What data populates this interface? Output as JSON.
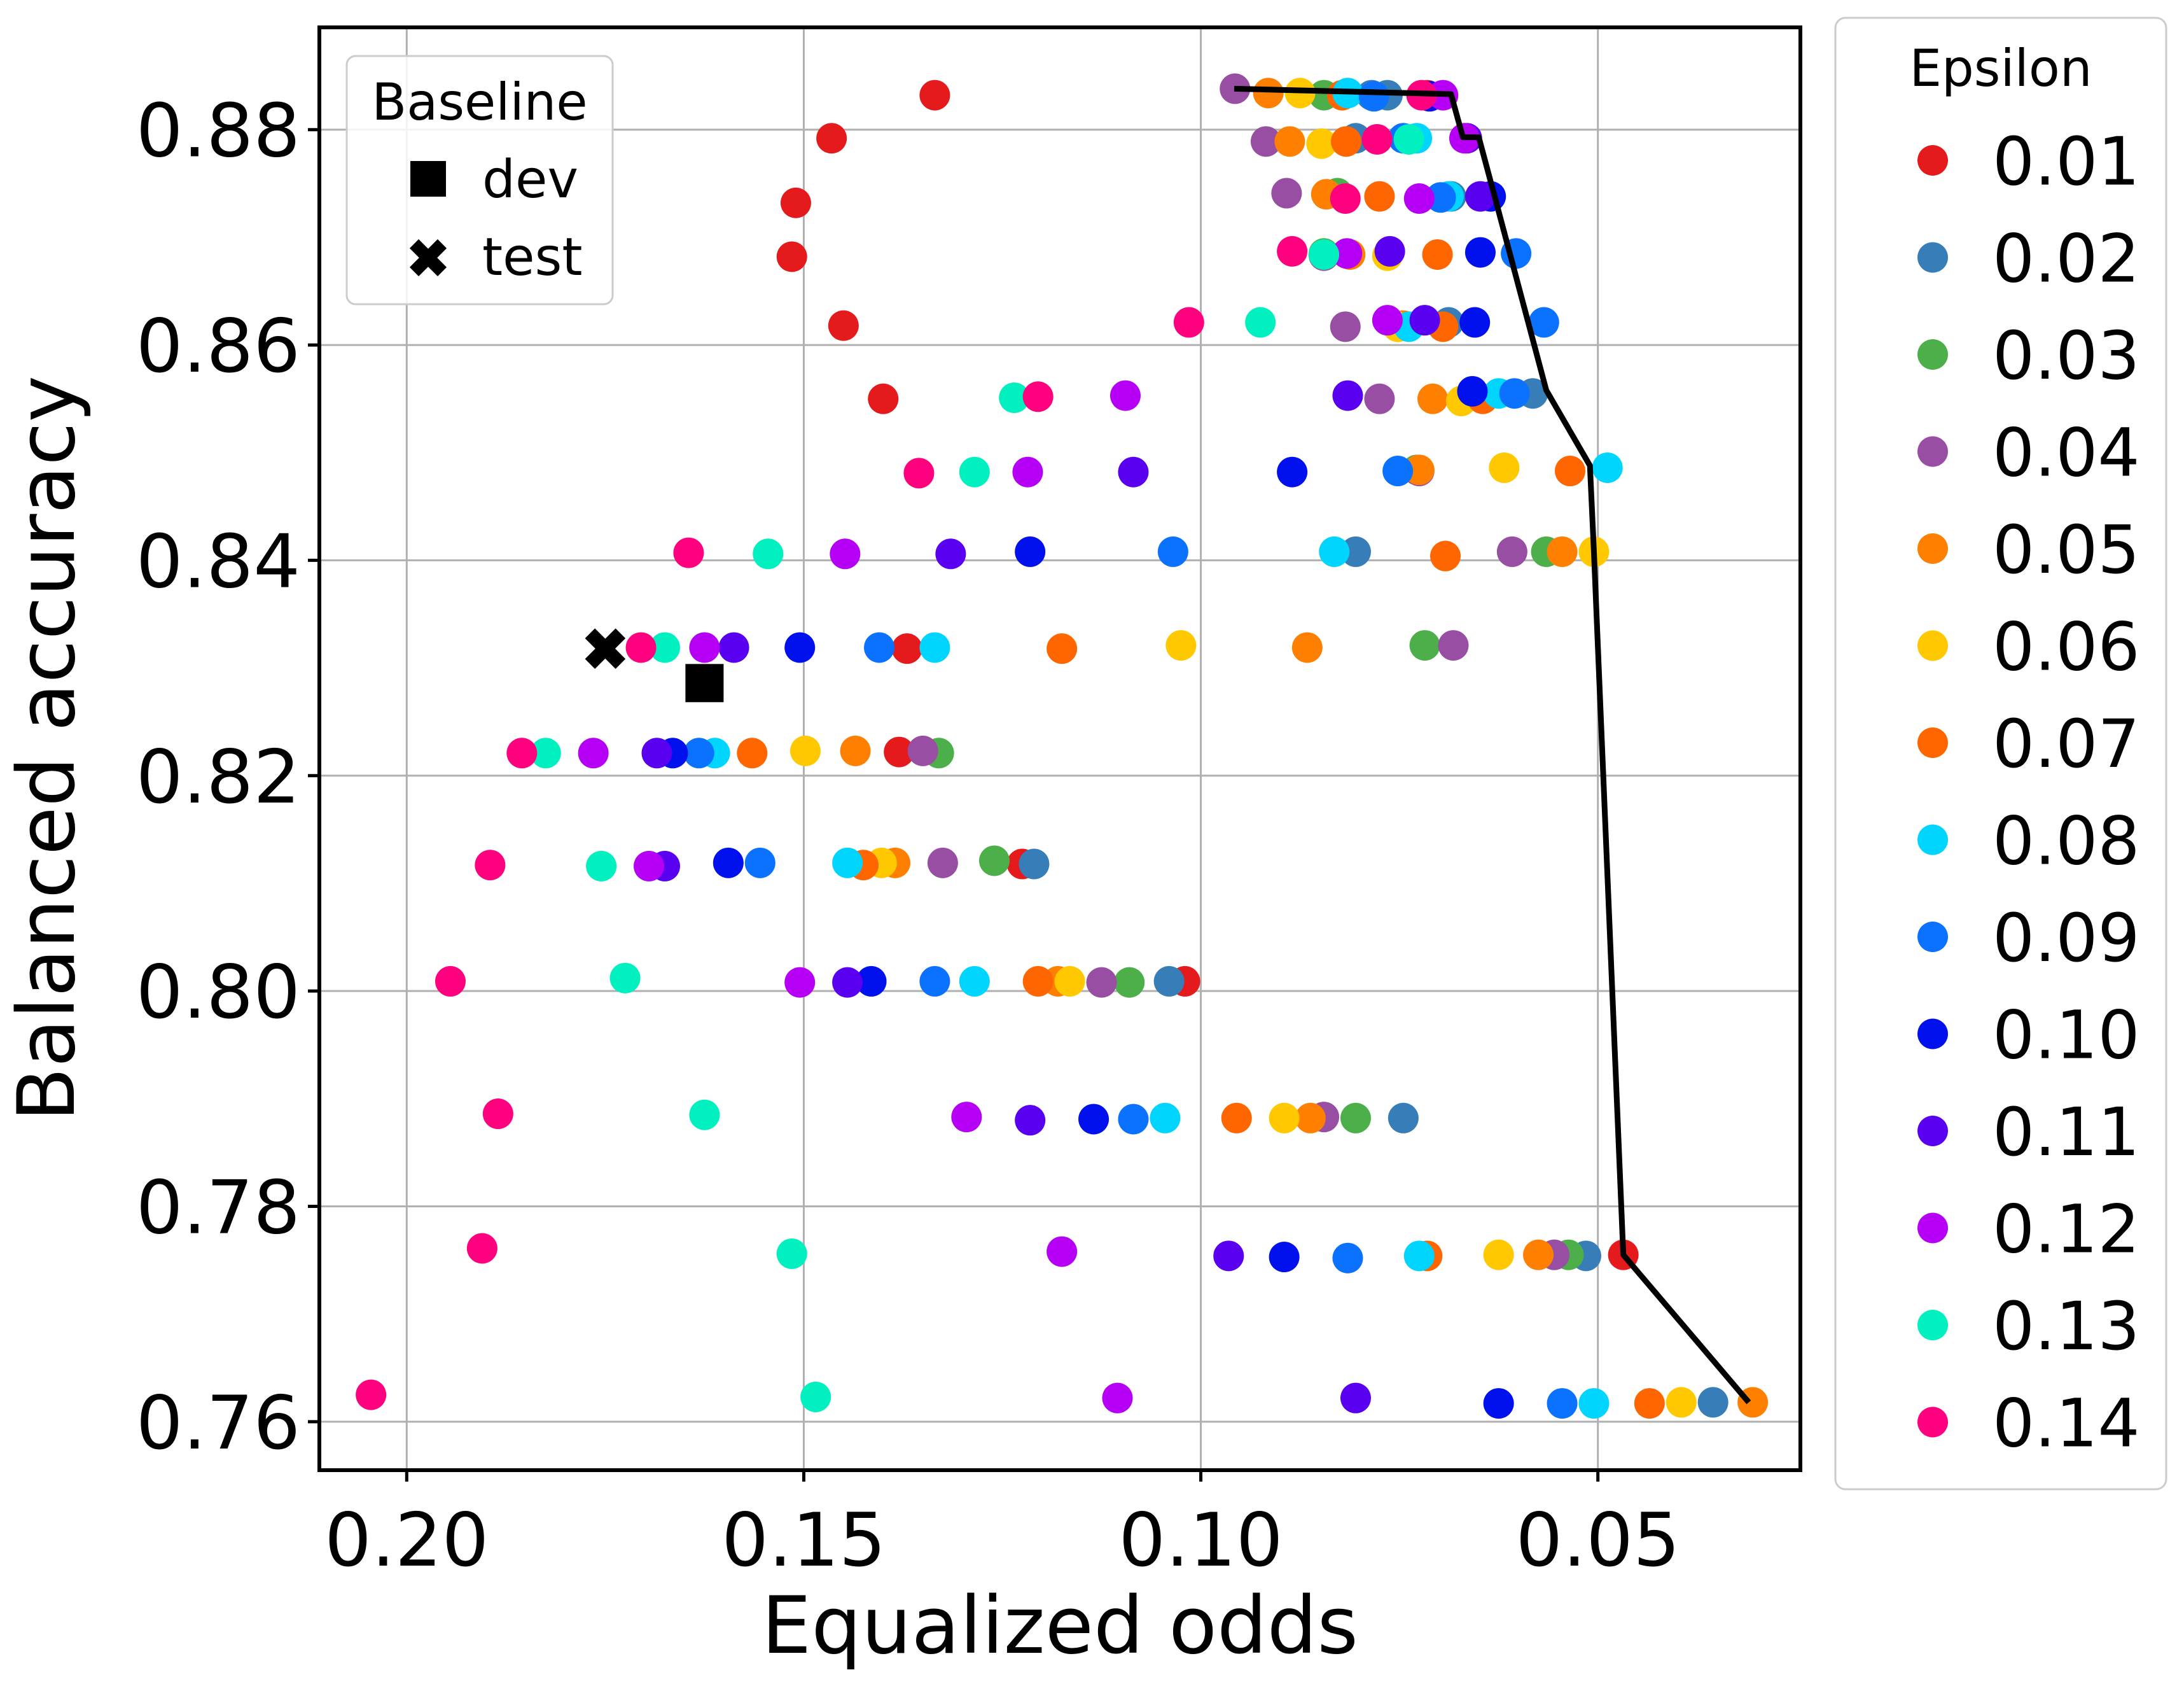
{
  "chart_data": {
    "type": "scatter",
    "xlabel": "Equalized odds",
    "ylabel": "Balanced accuracy",
    "x_axis_inverted": true,
    "xlim": [
      0.211,
      0.0245
    ],
    "ylim": [
      0.7555,
      0.8895
    ],
    "xticks": [
      0.2,
      0.15,
      0.1,
      0.05
    ],
    "xtick_labels": [
      "0.20",
      "0.15",
      "0.10",
      "0.05"
    ],
    "yticks": [
      0.76,
      0.78,
      0.8,
      0.82,
      0.84,
      0.86,
      0.88
    ],
    "ytick_labels": [
      "0.76",
      "0.78",
      "0.80",
      "0.82",
      "0.84",
      "0.86",
      "0.88"
    ],
    "grid": true,
    "epsilon_legend": {
      "title": "Epsilon",
      "placement": "outside right",
      "entries": [
        {
          "label": "0.01",
          "color": "#e41a1c"
        },
        {
          "label": "0.02",
          "color": "#377eb8"
        },
        {
          "label": "0.03",
          "color": "#4daf4a"
        },
        {
          "label": "0.04",
          "color": "#984ea3"
        },
        {
          "label": "0.05",
          "color": "#ff7f00"
        },
        {
          "label": "0.06",
          "color": "#ffc800"
        },
        {
          "label": "0.07",
          "color": "#ff6600"
        },
        {
          "label": "0.08",
          "color": "#00d5ff"
        },
        {
          "label": "0.09",
          "color": "#0a72ff"
        },
        {
          "label": "0.10",
          "color": "#0011ee"
        },
        {
          "label": "0.11",
          "color": "#5a00f0"
        },
        {
          "label": "0.12",
          "color": "#b500f5"
        },
        {
          "label": "0.13",
          "color": "#00f0c0"
        },
        {
          "label": "0.14",
          "color": "#ff007f"
        }
      ]
    },
    "baseline_legend": {
      "title": "Baseline",
      "placement": "top-left",
      "entries": [
        {
          "label": "dev",
          "marker": "square"
        },
        {
          "label": "test",
          "marker": "x"
        }
      ]
    },
    "baseline_points": [
      {
        "label": "dev",
        "marker": "square",
        "x": 0.1625,
        "y": 0.8286
      },
      {
        "label": "test",
        "marker": "x",
        "x": 0.175,
        "y": 0.8318
      }
    ],
    "pareto_front": {
      "color": "#000000",
      "points": [
        [
          0.0958,
          0.8838
        ],
        [
          0.0685,
          0.8833
        ],
        [
          0.067,
          0.8793
        ],
        [
          0.065,
          0.8793
        ],
        [
          0.063,
          0.8738
        ],
        [
          0.0565,
          0.8558
        ],
        [
          0.051,
          0.8488
        ],
        [
          0.0505,
          0.8408
        ],
        [
          0.0468,
          0.7755
        ],
        [
          0.031,
          0.7618
        ]
      ]
    },
    "points": [
      {
        "eps": "0.01",
        "x": 0.1335,
        "y": 0.8832
      },
      {
        "eps": "0.01",
        "x": 0.1465,
        "y": 0.8792
      },
      {
        "eps": "0.01",
        "x": 0.151,
        "y": 0.8732
      },
      {
        "eps": "0.01",
        "x": 0.1515,
        "y": 0.8682
      },
      {
        "eps": "0.01",
        "x": 0.145,
        "y": 0.8618
      },
      {
        "eps": "0.01",
        "x": 0.14,
        "y": 0.855
      },
      {
        "eps": "0.01",
        "x": 0.137,
        "y": 0.8318
      },
      {
        "eps": "0.01",
        "x": 0.138,
        "y": 0.8222
      },
      {
        "eps": "0.01",
        "x": 0.1225,
        "y": 0.8118
      },
      {
        "eps": "0.01",
        "x": 0.102,
        "y": 0.8009
      },
      {
        "eps": "0.01",
        "x": 0.0715,
        "y": 0.8832
      },
      {
        "eps": "0.01",
        "x": 0.0468,
        "y": 0.7755
      },
      {
        "eps": "0.02",
        "x": 0.0785,
        "y": 0.8832
      },
      {
        "eps": "0.02",
        "x": 0.0765,
        "y": 0.8832
      },
      {
        "eps": "0.02",
        "x": 0.0805,
        "y": 0.8792
      },
      {
        "eps": "0.02",
        "x": 0.0685,
        "y": 0.8738
      },
      {
        "eps": "0.02",
        "x": 0.0688,
        "y": 0.8621
      },
      {
        "eps": "0.02",
        "x": 0.0582,
        "y": 0.8555
      },
      {
        "eps": "0.02",
        "x": 0.0805,
        "y": 0.8408
      },
      {
        "eps": "0.02",
        "x": 0.121,
        "y": 0.8118
      },
      {
        "eps": "0.02",
        "x": 0.104,
        "y": 0.8009
      },
      {
        "eps": "0.02",
        "x": 0.0745,
        "y": 0.7882
      },
      {
        "eps": "0.02",
        "x": 0.0515,
        "y": 0.7754
      },
      {
        "eps": "0.02",
        "x": 0.0355,
        "y": 0.7618
      },
      {
        "eps": "0.03",
        "x": 0.0845,
        "y": 0.8832
      },
      {
        "eps": "0.03",
        "x": 0.0828,
        "y": 0.8741
      },
      {
        "eps": "0.03",
        "x": 0.0845,
        "y": 0.8685
      },
      {
        "eps": "0.03",
        "x": 0.0752,
        "y": 0.8617
      },
      {
        "eps": "0.03",
        "x": 0.0728,
        "y": 0.8484
      },
      {
        "eps": "0.03",
        "x": 0.0565,
        "y": 0.8408
      },
      {
        "eps": "0.03",
        "x": 0.133,
        "y": 0.8221
      },
      {
        "eps": "0.03",
        "x": 0.126,
        "y": 0.8121
      },
      {
        "eps": "0.03",
        "x": 0.109,
        "y": 0.8008
      },
      {
        "eps": "0.03",
        "x": 0.0805,
        "y": 0.7882
      },
      {
        "eps": "0.03",
        "x": 0.0537,
        "y": 0.7755
      },
      {
        "eps": "0.03",
        "x": 0.0718,
        "y": 0.8321
      },
      {
        "eps": "0.04",
        "x": 0.0957,
        "y": 0.8838
      },
      {
        "eps": "0.04",
        "x": 0.0918,
        "y": 0.8789
      },
      {
        "eps": "0.04",
        "x": 0.0892,
        "y": 0.8741
      },
      {
        "eps": "0.04",
        "x": 0.0845,
        "y": 0.8683
      },
      {
        "eps": "0.04",
        "x": 0.0818,
        "y": 0.8617
      },
      {
        "eps": "0.04",
        "x": 0.0775,
        "y": 0.855
      },
      {
        "eps": "0.04",
        "x": 0.0725,
        "y": 0.8483
      },
      {
        "eps": "0.04",
        "x": 0.0608,
        "y": 0.8408
      },
      {
        "eps": "0.04",
        "x": 0.0682,
        "y": 0.8321
      },
      {
        "eps": "0.04",
        "x": 0.135,
        "y": 0.8223
      },
      {
        "eps": "0.04",
        "x": 0.1325,
        "y": 0.8119
      },
      {
        "eps": "0.04",
        "x": 0.1125,
        "y": 0.8008
      },
      {
        "eps": "0.04",
        "x": 0.0845,
        "y": 0.7883
      },
      {
        "eps": "0.04",
        "x": 0.0555,
        "y": 0.7755
      },
      {
        "eps": "0.05",
        "x": 0.0915,
        "y": 0.8834
      },
      {
        "eps": "0.05",
        "x": 0.0888,
        "y": 0.8789
      },
      {
        "eps": "0.05",
        "x": 0.0842,
        "y": 0.874
      },
      {
        "eps": "0.05",
        "x": 0.0812,
        "y": 0.8684
      },
      {
        "eps": "0.05",
        "x": 0.0745,
        "y": 0.8618
      },
      {
        "eps": "0.05",
        "x": 0.0708,
        "y": 0.855
      },
      {
        "eps": "0.05",
        "x": 0.0725,
        "y": 0.8484
      },
      {
        "eps": "0.05",
        "x": 0.0545,
        "y": 0.8408
      },
      {
        "eps": "0.05",
        "x": 0.0866,
        "y": 0.8319
      },
      {
        "eps": "0.05",
        "x": 0.1435,
        "y": 0.8223
      },
      {
        "eps": "0.05",
        "x": 0.1385,
        "y": 0.8119
      },
      {
        "eps": "0.05",
        "x": 0.118,
        "y": 0.8009
      },
      {
        "eps": "0.05",
        "x": 0.0862,
        "y": 0.7882
      },
      {
        "eps": "0.05",
        "x": 0.0575,
        "y": 0.7755
      },
      {
        "eps": "0.05",
        "x": 0.0305,
        "y": 0.7618
      },
      {
        "eps": "0.06",
        "x": 0.0875,
        "y": 0.8834
      },
      {
        "eps": "0.06",
        "x": 0.0848,
        "y": 0.8787
      },
      {
        "eps": "0.06",
        "x": 0.0765,
        "y": 0.8683
      },
      {
        "eps": "0.06",
        "x": 0.0752,
        "y": 0.8617
      },
      {
        "eps": "0.06",
        "x": 0.0672,
        "y": 0.8548
      },
      {
        "eps": "0.06",
        "x": 0.0618,
        "y": 0.8486
      },
      {
        "eps": "0.06",
        "x": 0.0505,
        "y": 0.8408
      },
      {
        "eps": "0.06",
        "x": 0.1025,
        "y": 0.8321
      },
      {
        "eps": "0.06",
        "x": 0.1498,
        "y": 0.8223
      },
      {
        "eps": "0.06",
        "x": 0.1402,
        "y": 0.8119
      },
      {
        "eps": "0.06",
        "x": 0.1165,
        "y": 0.8009
      },
      {
        "eps": "0.06",
        "x": 0.0895,
        "y": 0.7882
      },
      {
        "eps": "0.06",
        "x": 0.0625,
        "y": 0.7755
      },
      {
        "eps": "0.06",
        "x": 0.0395,
        "y": 0.7618
      },
      {
        "eps": "0.07",
        "x": 0.0822,
        "y": 0.8832
      },
      {
        "eps": "0.07",
        "x": 0.0817,
        "y": 0.8789
      },
      {
        "eps": "0.07",
        "x": 0.0775,
        "y": 0.8738
      },
      {
        "eps": "0.07",
        "x": 0.0702,
        "y": 0.8684
      },
      {
        "eps": "0.07",
        "x": 0.0695,
        "y": 0.8617
      },
      {
        "eps": "0.07",
        "x": 0.0645,
        "y": 0.855
      },
      {
        "eps": "0.07",
        "x": 0.0535,
        "y": 0.8483
      },
      {
        "eps": "0.07",
        "x": 0.0692,
        "y": 0.8404
      },
      {
        "eps": "0.07",
        "x": 0.1175,
        "y": 0.8318
      },
      {
        "eps": "0.07",
        "x": 0.1565,
        "y": 0.8221
      },
      {
        "eps": "0.07",
        "x": 0.1425,
        "y": 0.8117
      },
      {
        "eps": "0.07",
        "x": 0.1205,
        "y": 0.8009
      },
      {
        "eps": "0.07",
        "x": 0.0955,
        "y": 0.7882
      },
      {
        "eps": "0.07",
        "x": 0.0715,
        "y": 0.7754
      },
      {
        "eps": "0.07",
        "x": 0.0435,
        "y": 0.7617
      },
      {
        "eps": "0.08",
        "x": 0.0815,
        "y": 0.8834
      },
      {
        "eps": "0.08",
        "x": 0.0728,
        "y": 0.8792
      },
      {
        "eps": "0.08",
        "x": 0.0688,
        "y": 0.8738
      },
      {
        "eps": "0.08",
        "x": 0.0738,
        "y": 0.8617
      },
      {
        "eps": "0.08",
        "x": 0.0625,
        "y": 0.8555
      },
      {
        "eps": "0.08",
        "x": 0.0488,
        "y": 0.8486
      },
      {
        "eps": "0.08",
        "x": 0.0832,
        "y": 0.8408
      },
      {
        "eps": "0.08",
        "x": 0.1335,
        "y": 0.8319
      },
      {
        "eps": "0.08",
        "x": 0.1612,
        "y": 0.8221
      },
      {
        "eps": "0.08",
        "x": 0.1445,
        "y": 0.8119
      },
      {
        "eps": "0.08",
        "x": 0.1285,
        "y": 0.8009
      },
      {
        "eps": "0.08",
        "x": 0.1045,
        "y": 0.7882
      },
      {
        "eps": "0.08",
        "x": 0.0725,
        "y": 0.7754
      },
      {
        "eps": "0.08",
        "x": 0.0505,
        "y": 0.7617
      },
      {
        "eps": "0.09",
        "x": 0.0782,
        "y": 0.8831
      },
      {
        "eps": "0.09",
        "x": 0.0745,
        "y": 0.8792
      },
      {
        "eps": "0.09",
        "x": 0.0698,
        "y": 0.8737
      },
      {
        "eps": "0.09",
        "x": 0.0603,
        "y": 0.8685
      },
      {
        "eps": "0.09",
        "x": 0.0568,
        "y": 0.8621
      },
      {
        "eps": "0.09",
        "x": 0.0605,
        "y": 0.8555
      },
      {
        "eps": "0.09",
        "x": 0.0752,
        "y": 0.8483
      },
      {
        "eps": "0.09",
        "x": 0.1035,
        "y": 0.8408
      },
      {
        "eps": "0.09",
        "x": 0.1405,
        "y": 0.8319
      },
      {
        "eps": "0.09",
        "x": 0.1632,
        "y": 0.8221
      },
      {
        "eps": "0.09",
        "x": 0.1555,
        "y": 0.8119
      },
      {
        "eps": "0.09",
        "x": 0.1335,
        "y": 0.8009
      },
      {
        "eps": "0.09",
        "x": 0.1085,
        "y": 0.7881
      },
      {
        "eps": "0.09",
        "x": 0.0815,
        "y": 0.7752
      },
      {
        "eps": "0.09",
        "x": 0.0545,
        "y": 0.7617
      },
      {
        "eps": "0.10",
        "x": 0.0712,
        "y": 0.8831
      },
      {
        "eps": "0.10",
        "x": 0.0635,
        "y": 0.8738
      },
      {
        "eps": "0.10",
        "x": 0.0648,
        "y": 0.8686
      },
      {
        "eps": "0.10",
        "x": 0.0655,
        "y": 0.8621
      },
      {
        "eps": "0.10",
        "x": 0.0658,
        "y": 0.8557
      },
      {
        "eps": "0.10",
        "x": 0.0885,
        "y": 0.8482
      },
      {
        "eps": "0.10",
        "x": 0.1215,
        "y": 0.8408
      },
      {
        "eps": "0.10",
        "x": 0.1505,
        "y": 0.8319
      },
      {
        "eps": "0.10",
        "x": 0.1665,
        "y": 0.8221
      },
      {
        "eps": "0.10",
        "x": 0.1595,
        "y": 0.8119
      },
      {
        "eps": "0.10",
        "x": 0.1415,
        "y": 0.8009
      },
      {
        "eps": "0.10",
        "x": 0.1135,
        "y": 0.7881
      },
      {
        "eps": "0.10",
        "x": 0.0895,
        "y": 0.7753
      },
      {
        "eps": "0.10",
        "x": 0.0625,
        "y": 0.7617
      },
      {
        "eps": "0.11",
        "x": 0.0665,
        "y": 0.8792
      },
      {
        "eps": "0.11",
        "x": 0.0648,
        "y": 0.8738
      },
      {
        "eps": "0.11",
        "x": 0.0762,
        "y": 0.8687
      },
      {
        "eps": "0.11",
        "x": 0.0718,
        "y": 0.8623
      },
      {
        "eps": "0.11",
        "x": 0.0815,
        "y": 0.8553
      },
      {
        "eps": "0.11",
        "x": 0.1085,
        "y": 0.8482
      },
      {
        "eps": "0.11",
        "x": 0.1315,
        "y": 0.8406
      },
      {
        "eps": "0.11",
        "x": 0.1588,
        "y": 0.8319
      },
      {
        "eps": "0.11",
        "x": 0.1685,
        "y": 0.8221
      },
      {
        "eps": "0.11",
        "x": 0.1675,
        "y": 0.8116
      },
      {
        "eps": "0.11",
        "x": 0.1445,
        "y": 0.8008
      },
      {
        "eps": "0.11",
        "x": 0.1215,
        "y": 0.788
      },
      {
        "eps": "0.11",
        "x": 0.0965,
        "y": 0.7754
      },
      {
        "eps": "0.11",
        "x": 0.0805,
        "y": 0.7622
      },
      {
        "eps": "0.12",
        "x": 0.0695,
        "y": 0.8832
      },
      {
        "eps": "0.12",
        "x": 0.0668,
        "y": 0.8792
      },
      {
        "eps": "0.12",
        "x": 0.0725,
        "y": 0.8736
      },
      {
        "eps": "0.12",
        "x": 0.0816,
        "y": 0.8685
      },
      {
        "eps": "0.12",
        "x": 0.0765,
        "y": 0.8623
      },
      {
        "eps": "0.12",
        "x": 0.1095,
        "y": 0.8553
      },
      {
        "eps": "0.12",
        "x": 0.1218,
        "y": 0.8482
      },
      {
        "eps": "0.12",
        "x": 0.1448,
        "y": 0.8406
      },
      {
        "eps": "0.12",
        "x": 0.1625,
        "y": 0.8319
      },
      {
        "eps": "0.12",
        "x": 0.1765,
        "y": 0.8221
      },
      {
        "eps": "0.12",
        "x": 0.1695,
        "y": 0.8116
      },
      {
        "eps": "0.12",
        "x": 0.1505,
        "y": 0.8008
      },
      {
        "eps": "0.12",
        "x": 0.1295,
        "y": 0.7883
      },
      {
        "eps": "0.12",
        "x": 0.1175,
        "y": 0.7758
      },
      {
        "eps": "0.12",
        "x": 0.1105,
        "y": 0.7622
      },
      {
        "eps": "0.13",
        "x": 0.0738,
        "y": 0.8791
      },
      {
        "eps": "0.13",
        "x": 0.0845,
        "y": 0.8684
      },
      {
        "eps": "0.13",
        "x": 0.0925,
        "y": 0.8621
      },
      {
        "eps": "0.13",
        "x": 0.1235,
        "y": 0.8551
      },
      {
        "eps": "0.13",
        "x": 0.1285,
        "y": 0.8482
      },
      {
        "eps": "0.13",
        "x": 0.1545,
        "y": 0.8406
      },
      {
        "eps": "0.13",
        "x": 0.1675,
        "y": 0.8319
      },
      {
        "eps": "0.13",
        "x": 0.1825,
        "y": 0.8221
      },
      {
        "eps": "0.13",
        "x": 0.1755,
        "y": 0.8116
      },
      {
        "eps": "0.13",
        "x": 0.1725,
        "y": 0.8012
      },
      {
        "eps": "0.13",
        "x": 0.1625,
        "y": 0.7885
      },
      {
        "eps": "0.13",
        "x": 0.1515,
        "y": 0.7756
      },
      {
        "eps": "0.13",
        "x": 0.1485,
        "y": 0.7623
      },
      {
        "eps": "0.14",
        "x": 0.0722,
        "y": 0.8832
      },
      {
        "eps": "0.14",
        "x": 0.0778,
        "y": 0.8791
      },
      {
        "eps": "0.14",
        "x": 0.0818,
        "y": 0.8736
      },
      {
        "eps": "0.14",
        "x": 0.0885,
        "y": 0.8687
      },
      {
        "eps": "0.14",
        "x": 0.1015,
        "y": 0.8621
      },
      {
        "eps": "0.14",
        "x": 0.1205,
        "y": 0.8552
      },
      {
        "eps": "0.14",
        "x": 0.1355,
        "y": 0.8481
      },
      {
        "eps": "0.14",
        "x": 0.1645,
        "y": 0.8407
      },
      {
        "eps": "0.14",
        "x": 0.1705,
        "y": 0.8319
      },
      {
        "eps": "0.14",
        "x": 0.1855,
        "y": 0.8221
      },
      {
        "eps": "0.14",
        "x": 0.1895,
        "y": 0.8117
      },
      {
        "eps": "0.14",
        "x": 0.1945,
        "y": 0.8009
      },
      {
        "eps": "0.14",
        "x": 0.1885,
        "y": 0.7886
      },
      {
        "eps": "0.14",
        "x": 0.1905,
        "y": 0.7761
      },
      {
        "eps": "0.14",
        "x": 0.2045,
        "y": 0.7625
      }
    ]
  }
}
